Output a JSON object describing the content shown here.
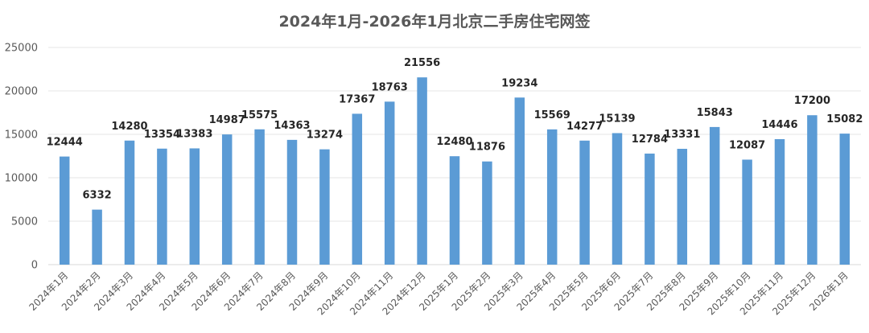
{
  "chart_data": {
    "type": "bar",
    "title": "2024年1月-2026年1月北京二手房住宅网签",
    "xlabel": "",
    "ylabel": "",
    "ylim": [
      0,
      25000
    ],
    "yticks": [
      0,
      5000,
      10000,
      15000,
      20000,
      25000
    ],
    "grid": true,
    "bar_color": "#5B9BD5",
    "categories": [
      "2024年1月",
      "2024年2月",
      "2024年3月",
      "2024年4月",
      "2024年5月",
      "2024年6月",
      "2024年7月",
      "2024年8月",
      "2024年9月",
      "2024年10月",
      "2024年11月",
      "2024年12月",
      "2025年1月",
      "2025年2月",
      "2025年3月",
      "2025年4月",
      "2025年5月",
      "2025年6月",
      "2025年7月",
      "2025年8月",
      "2025年9月",
      "2025年10月",
      "2025年11月",
      "2025年12月",
      "2026年1月"
    ],
    "values": [
      12444,
      6332,
      14280,
      13354,
      13383,
      14987,
      15575,
      14363,
      13274,
      17367,
      18763,
      21556,
      12480,
      11876,
      19234,
      15569,
      14277,
      15139,
      12784,
      13331,
      15843,
      12087,
      14446,
      17200,
      15082
    ]
  }
}
